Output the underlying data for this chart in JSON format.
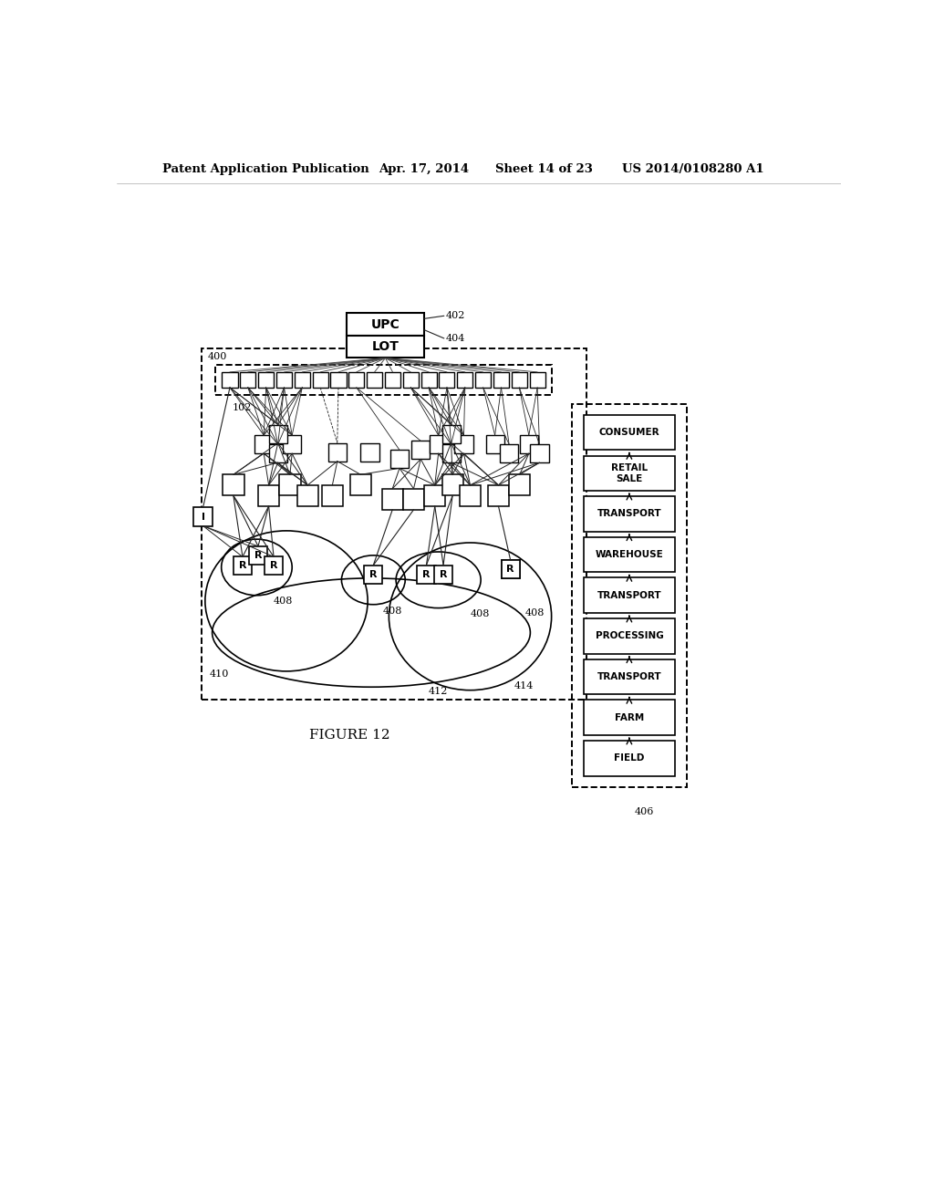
{
  "bg_color": "#ffffff",
  "header_text": "Patent Application Publication",
  "header_date": "Apr. 17, 2014",
  "header_sheet": "Sheet 14 of 23",
  "header_patent": "US 2014/0108280 A1",
  "figure_label": "FIGURE 12",
  "supply_chain_labels": [
    "CONSUMER",
    "RETAIL\nSALE",
    "TRANSPORT",
    "WAREHOUSE",
    "TRANSPORT",
    "PROCESSING",
    "TRANSPORT",
    "FARM",
    "FIELD"
  ],
  "upc_label": "UPC",
  "lot_label": "LOT",
  "ref_402": "402",
  "ref_404": "404",
  "ref_400": "400",
  "ref_102": "102",
  "ref_406": "406",
  "ref_408": "408",
  "ref_410": "410",
  "ref_412": "412",
  "ref_414": "414"
}
